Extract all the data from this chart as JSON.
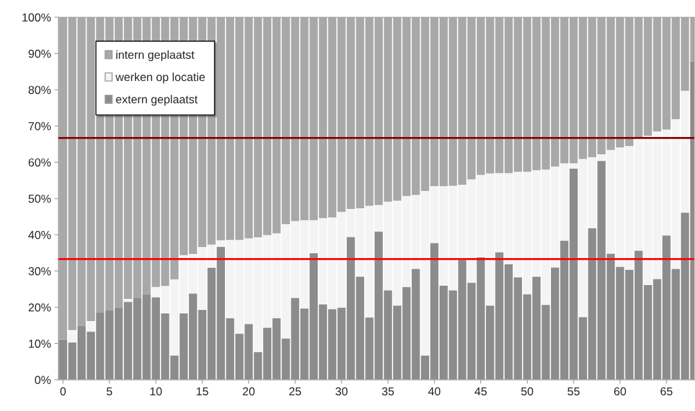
{
  "chart_data": {
    "type": "bar",
    "stacked": true,
    "legend": "top left",
    "x": [
      0,
      1,
      2,
      3,
      4,
      5,
      6,
      7,
      8,
      9,
      10,
      11,
      12,
      13,
      14,
      15,
      16,
      17,
      18,
      19,
      20,
      21,
      22,
      23,
      24,
      25,
      26,
      27,
      28,
      29,
      30,
      31,
      32,
      33,
      34,
      35,
      36,
      37,
      38,
      39,
      40,
      41,
      42,
      43,
      44,
      45,
      46,
      47,
      48,
      49,
      50,
      51,
      52,
      53,
      54,
      55,
      56,
      57,
      58,
      59,
      60,
      61,
      62,
      63,
      64,
      65,
      66,
      67,
      68
    ],
    "series": [
      {
        "name": "extern geplaatst",
        "color": "#8c8c8c",
        "values": [
          11.1,
          10.3,
          14.9,
          13.3,
          18.5,
          19.2,
          19.8,
          21.5,
          22.5,
          23.6,
          22.8,
          18.3,
          6.7,
          18.3,
          23.8,
          19.3,
          30.9,
          36.7,
          17.0,
          12.7,
          15.4,
          7.6,
          14.4,
          17.0,
          11.4,
          22.6,
          19.7,
          34.9,
          20.8,
          19.5,
          19.9,
          39.4,
          28.4,
          17.2,
          40.9,
          24.7,
          20.5,
          25.6,
          30.6,
          6.7,
          37.7,
          26.0,
          24.7,
          33.1,
          26.8,
          33.8,
          20.5,
          35.2,
          31.9,
          28.2,
          23.6,
          28.4,
          20.7,
          31.0,
          38.4,
          58.3,
          17.3,
          41.8,
          60.4,
          34.8,
          31.2,
          30.3,
          35.6,
          26.1,
          27.8,
          39.8,
          30.6,
          46.1,
          87.8
        ]
      },
      {
        "name": "werken op locatie",
        "color": "#f4f4f4",
        "values": [
          0,
          3.4,
          0,
          2.9,
          0,
          0,
          0,
          0.8,
          0,
          0,
          2.8,
          7.6,
          21.0,
          16.1,
          10.9,
          17.3,
          6.4,
          1.8,
          21.6,
          25.9,
          23.6,
          31.7,
          25.5,
          23.4,
          31.5,
          21.2,
          24.3,
          9.1,
          23.8,
          25.3,
          26.4,
          7.7,
          18.9,
          30.8,
          7.3,
          24.4,
          28.9,
          25.1,
          20.4,
          45.4,
          15.7,
          27.4,
          28.8,
          20.7,
          28.5,
          22.7,
          36.4,
          21.8,
          25.1,
          29.2,
          33.8,
          29.4,
          37.3,
          27.8,
          21.3,
          1.4,
          43.6,
          19.6,
          1.8,
          28.6,
          32.9,
          34.2,
          31.3,
          41.2,
          40.7,
          29.2,
          41.3,
          33.6,
          0
        ]
      },
      {
        "name": "intern geplaatst",
        "color": "#a8a8a8",
        "values": [
          88.9,
          86.3,
          85.1,
          83.8,
          81.5,
          80.8,
          80.2,
          77.7,
          77.5,
          76.4,
          74.4,
          74.1,
          72.3,
          65.6,
          65.3,
          63.4,
          62.7,
          61.5,
          61.4,
          61.4,
          61.0,
          60.7,
          60.1,
          59.6,
          57.1,
          56.2,
          56.0,
          56.0,
          55.4,
          55.2,
          53.7,
          52.9,
          52.7,
          52.0,
          51.8,
          50.9,
          50.6,
          49.3,
          49.0,
          47.9,
          46.6,
          46.6,
          46.5,
          46.2,
          44.7,
          43.5,
          43.1,
          43.0,
          43.0,
          42.6,
          42.6,
          42.2,
          42.0,
          41.2,
          40.3,
          40.3,
          39.1,
          38.6,
          37.8,
          36.6,
          35.9,
          35.5,
          33.1,
          32.7,
          31.5,
          31.0,
          28.1,
          20.3,
          12.2
        ]
      }
    ],
    "xlim": [
      -0.5,
      68
    ],
    "xticks": [
      0,
      5,
      10,
      15,
      20,
      25,
      30,
      35,
      40,
      45,
      50,
      55,
      60,
      65
    ],
    "ylim": [
      0,
      100
    ],
    "yticks": [
      {
        "value": 0,
        "label": "0%"
      },
      {
        "value": 10,
        "label": "10%"
      },
      {
        "value": 20,
        "label": "20%"
      },
      {
        "value": 30,
        "label": "30%"
      },
      {
        "value": 40,
        "label": "40%"
      },
      {
        "value": 50,
        "label": "50%"
      },
      {
        "value": 60,
        "label": "60%"
      },
      {
        "value": 70,
        "label": "70%"
      },
      {
        "value": 80,
        "label": "80%"
      },
      {
        "value": 90,
        "label": "90%"
      },
      {
        "value": 100,
        "label": "100%"
      }
    ],
    "ref_lines": [
      {
        "axis": "y",
        "value": 33.3,
        "color": "#ff0000"
      },
      {
        "axis": "y",
        "value": 66.7,
        "color": "#8b0000"
      }
    ]
  }
}
